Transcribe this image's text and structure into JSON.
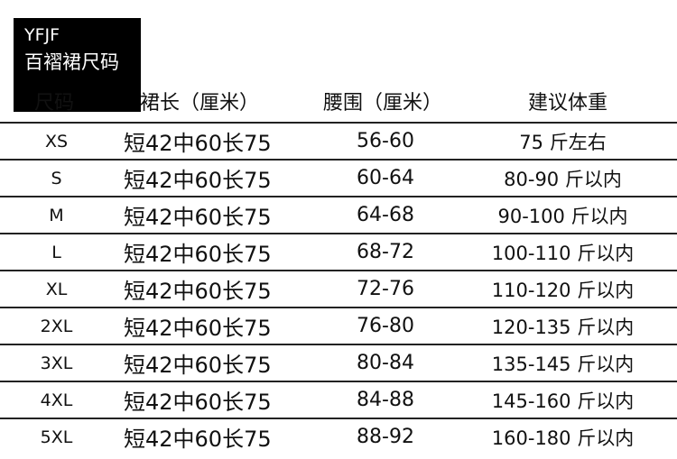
{
  "brand": {
    "line1": "YFJF",
    "line2": "百褶裙尺码"
  },
  "headers": [
    "尺码",
    "裙长（厘米）",
    "腰围（厘米）",
    "建议体重"
  ],
  "rows": [
    {
      "size": "XS",
      "length": "短42中60长75",
      "waist": "56-60",
      "weight": "75 斤左右"
    },
    {
      "size": "S",
      "length": "短42中60长75",
      "waist": "60-64",
      "weight": "80-90 斤以内"
    },
    {
      "size": "M",
      "length": "短42中60长75",
      "waist": "64-68",
      "weight": "90-100 斤以内"
    },
    {
      "size": "L",
      "length": "短42中60长75",
      "waist": "68-72",
      "weight": "100-110 斤以内"
    },
    {
      "size": "XL",
      "length": "短42中60长75",
      "waist": "72-76",
      "weight": "110-120 斤以内"
    },
    {
      "size": "2XL",
      "length": "短42中60长75",
      "waist": "76-80",
      "weight": "120-135 斤以内"
    },
    {
      "size": "3XL",
      "length": "短42中60长75",
      "waist": "80-84",
      "weight": "135-145 斤以内"
    },
    {
      "size": "4XL",
      "length": "短42中60长75",
      "waist": "84-88",
      "weight": "145-160 斤以内"
    },
    {
      "size": "5XL",
      "length": "短42中60长75",
      "waist": "88-92",
      "weight": "160-180 斤以内"
    }
  ]
}
